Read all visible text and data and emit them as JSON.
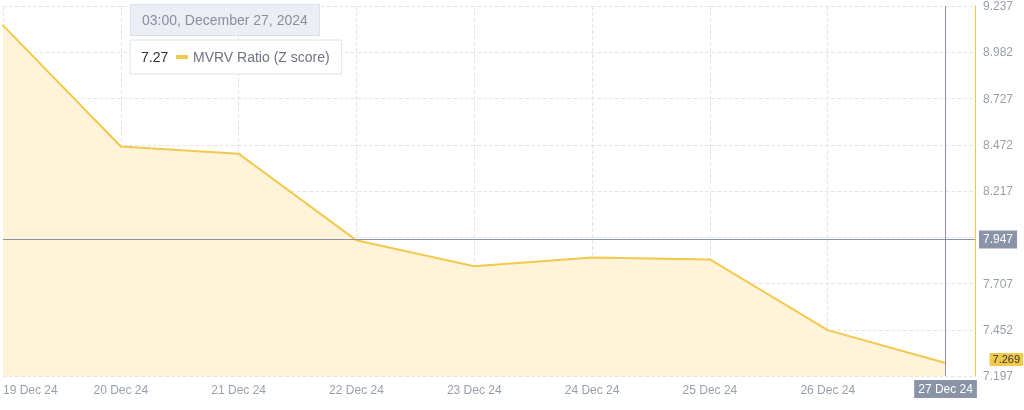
{
  "chart_data": {
    "type": "area",
    "x": [
      "2024-12-19",
      "2024-12-20",
      "2024-12-21",
      "2024-12-22",
      "2024-12-23",
      "2024-12-24",
      "2024-12-25",
      "2024-12-26",
      "2024-12-27"
    ],
    "series": [
      {
        "name": "MVRV Ratio (Z score)",
        "color": "#f2c94c",
        "values": [
          9.13,
          8.462,
          8.423,
          7.945,
          7.802,
          7.851,
          7.84,
          7.45,
          7.269
        ]
      }
    ],
    "xlim": [
      "2024-12-19",
      "2024-12-27T06:00"
    ],
    "xticks": [
      {
        "value": "2024-12-19",
        "label": "19 Dec 24"
      },
      {
        "value": "2024-12-20",
        "label": "20 Dec 24"
      },
      {
        "value": "2024-12-21",
        "label": "21 Dec 24"
      },
      {
        "value": "2024-12-22",
        "label": "22 Dec 24"
      },
      {
        "value": "2024-12-23",
        "label": "23 Dec 24"
      },
      {
        "value": "2024-12-24",
        "label": "24 Dec 24"
      },
      {
        "value": "2024-12-25",
        "label": "25 Dec 24"
      },
      {
        "value": "2024-12-26",
        "label": "26 Dec 24"
      },
      {
        "value": "2024-12-27",
        "label": null
      }
    ],
    "ylim": [
      7.197,
      9.237
    ],
    "yticks": [
      7.197,
      7.452,
      7.707,
      {
        "value": 7.962,
        "label": null
      },
      8.217,
      8.472,
      8.727,
      8.982,
      9.237
    ],
    "ref_lines": [
      {
        "axis": "y",
        "value": 7.947,
        "label": "7.947",
        "color": "#8a94a8"
      },
      {
        "axis": "x",
        "value": "2024-12-27",
        "label": "27 Dec 24",
        "color": "#8a94a8"
      }
    ],
    "annotations": [
      "03:00, December 27, 2024",
      "7.27",
      "7.269"
    ],
    "grid": true,
    "legend": "top left",
    "marker": "none",
    "line_style": "solid"
  }
}
